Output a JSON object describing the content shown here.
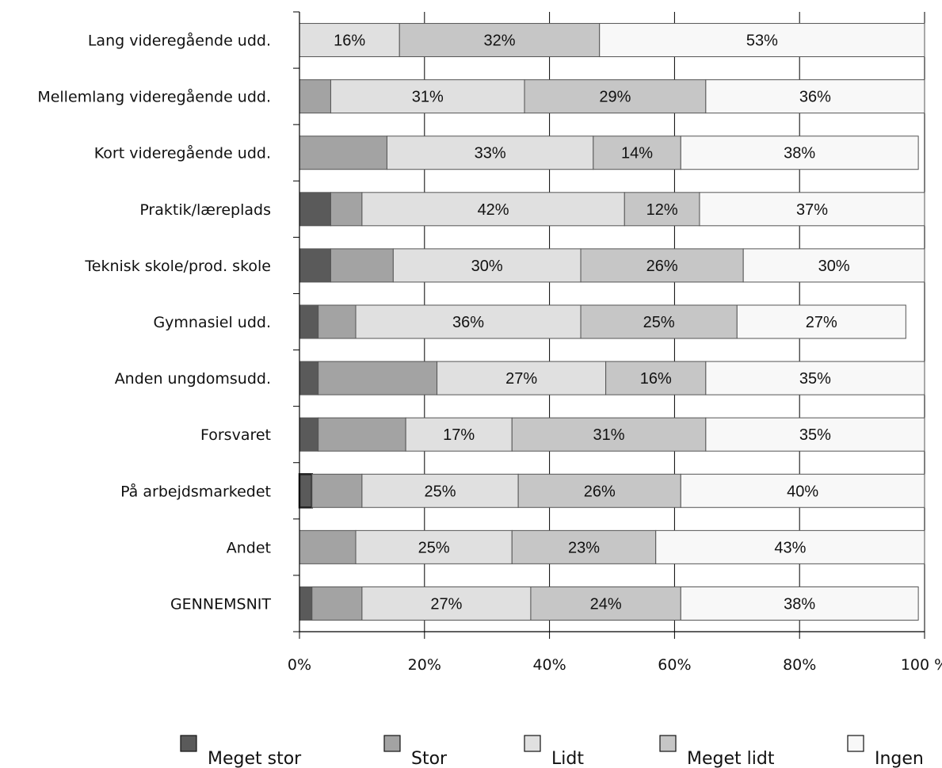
{
  "chart_data": {
    "type": "bar",
    "orientation": "horizontal",
    "stacked": true,
    "categories": [
      "Lang videregående udd.",
      "Mellemlang videregående udd.",
      "Kort videregående udd.",
      "Praktik/læreplads",
      "Teknisk skole/prod. skole",
      "Gymnasiel udd.",
      "Anden ungdomsudd.",
      "Forsvaret",
      "På arbejdsmarkedet",
      "Andet",
      "GENNEMSNIT"
    ],
    "series": [
      {
        "name": "Meget stor",
        "color": "#5a5a5a",
        "values": [
          0,
          0,
          0,
          5,
          5,
          3,
          3,
          3,
          2,
          0,
          2
        ]
      },
      {
        "name": "Stor",
        "color": "#a3a3a3",
        "values": [
          0,
          5,
          14,
          5,
          10,
          6,
          19,
          14,
          8,
          9,
          8
        ]
      },
      {
        "name": "Lidt",
        "color": "#e0e0e0",
        "values": [
          16,
          31,
          33,
          42,
          30,
          36,
          27,
          17,
          25,
          25,
          27
        ]
      },
      {
        "name": "Meget lidt",
        "color": "#c6c6c6",
        "values": [
          32,
          29,
          14,
          12,
          26,
          25,
          16,
          31,
          26,
          23,
          24
        ]
      },
      {
        "name": "Ingen",
        "color": "#f8f8f8",
        "values": [
          53,
          36,
          38,
          37,
          30,
          27,
          35,
          35,
          40,
          43,
          38
        ]
      }
    ],
    "data_labels": [
      [
        "",
        "",
        "16%",
        "32%",
        "53%"
      ],
      [
        "",
        "",
        "31%",
        "29%",
        "36%"
      ],
      [
        "",
        "",
        "33%",
        "14%",
        "38%"
      ],
      [
        "",
        "",
        "42%",
        "12%",
        "37%"
      ],
      [
        "",
        "",
        "30%",
        "26%",
        "30%"
      ],
      [
        "",
        "",
        "36%",
        "25%",
        "27%"
      ],
      [
        "",
        "",
        "27%",
        "16%",
        "35%"
      ],
      [
        "",
        "",
        "17%",
        "31%",
        "35%"
      ],
      [
        "",
        "",
        "25%",
        "26%",
        "40%"
      ],
      [
        "",
        "",
        "25%",
        "23%",
        "43%"
      ],
      [
        "",
        "",
        "27%",
        "24%",
        "38%"
      ]
    ],
    "xlim": [
      0,
      100
    ],
    "x_ticks": [
      "0%",
      "20%",
      "40%",
      "60%",
      "80%",
      "100 %"
    ],
    "x_tick_values": [
      0,
      20,
      40,
      60,
      80,
      100
    ],
    "grid": "vertical",
    "legend_position": "bottom"
  }
}
